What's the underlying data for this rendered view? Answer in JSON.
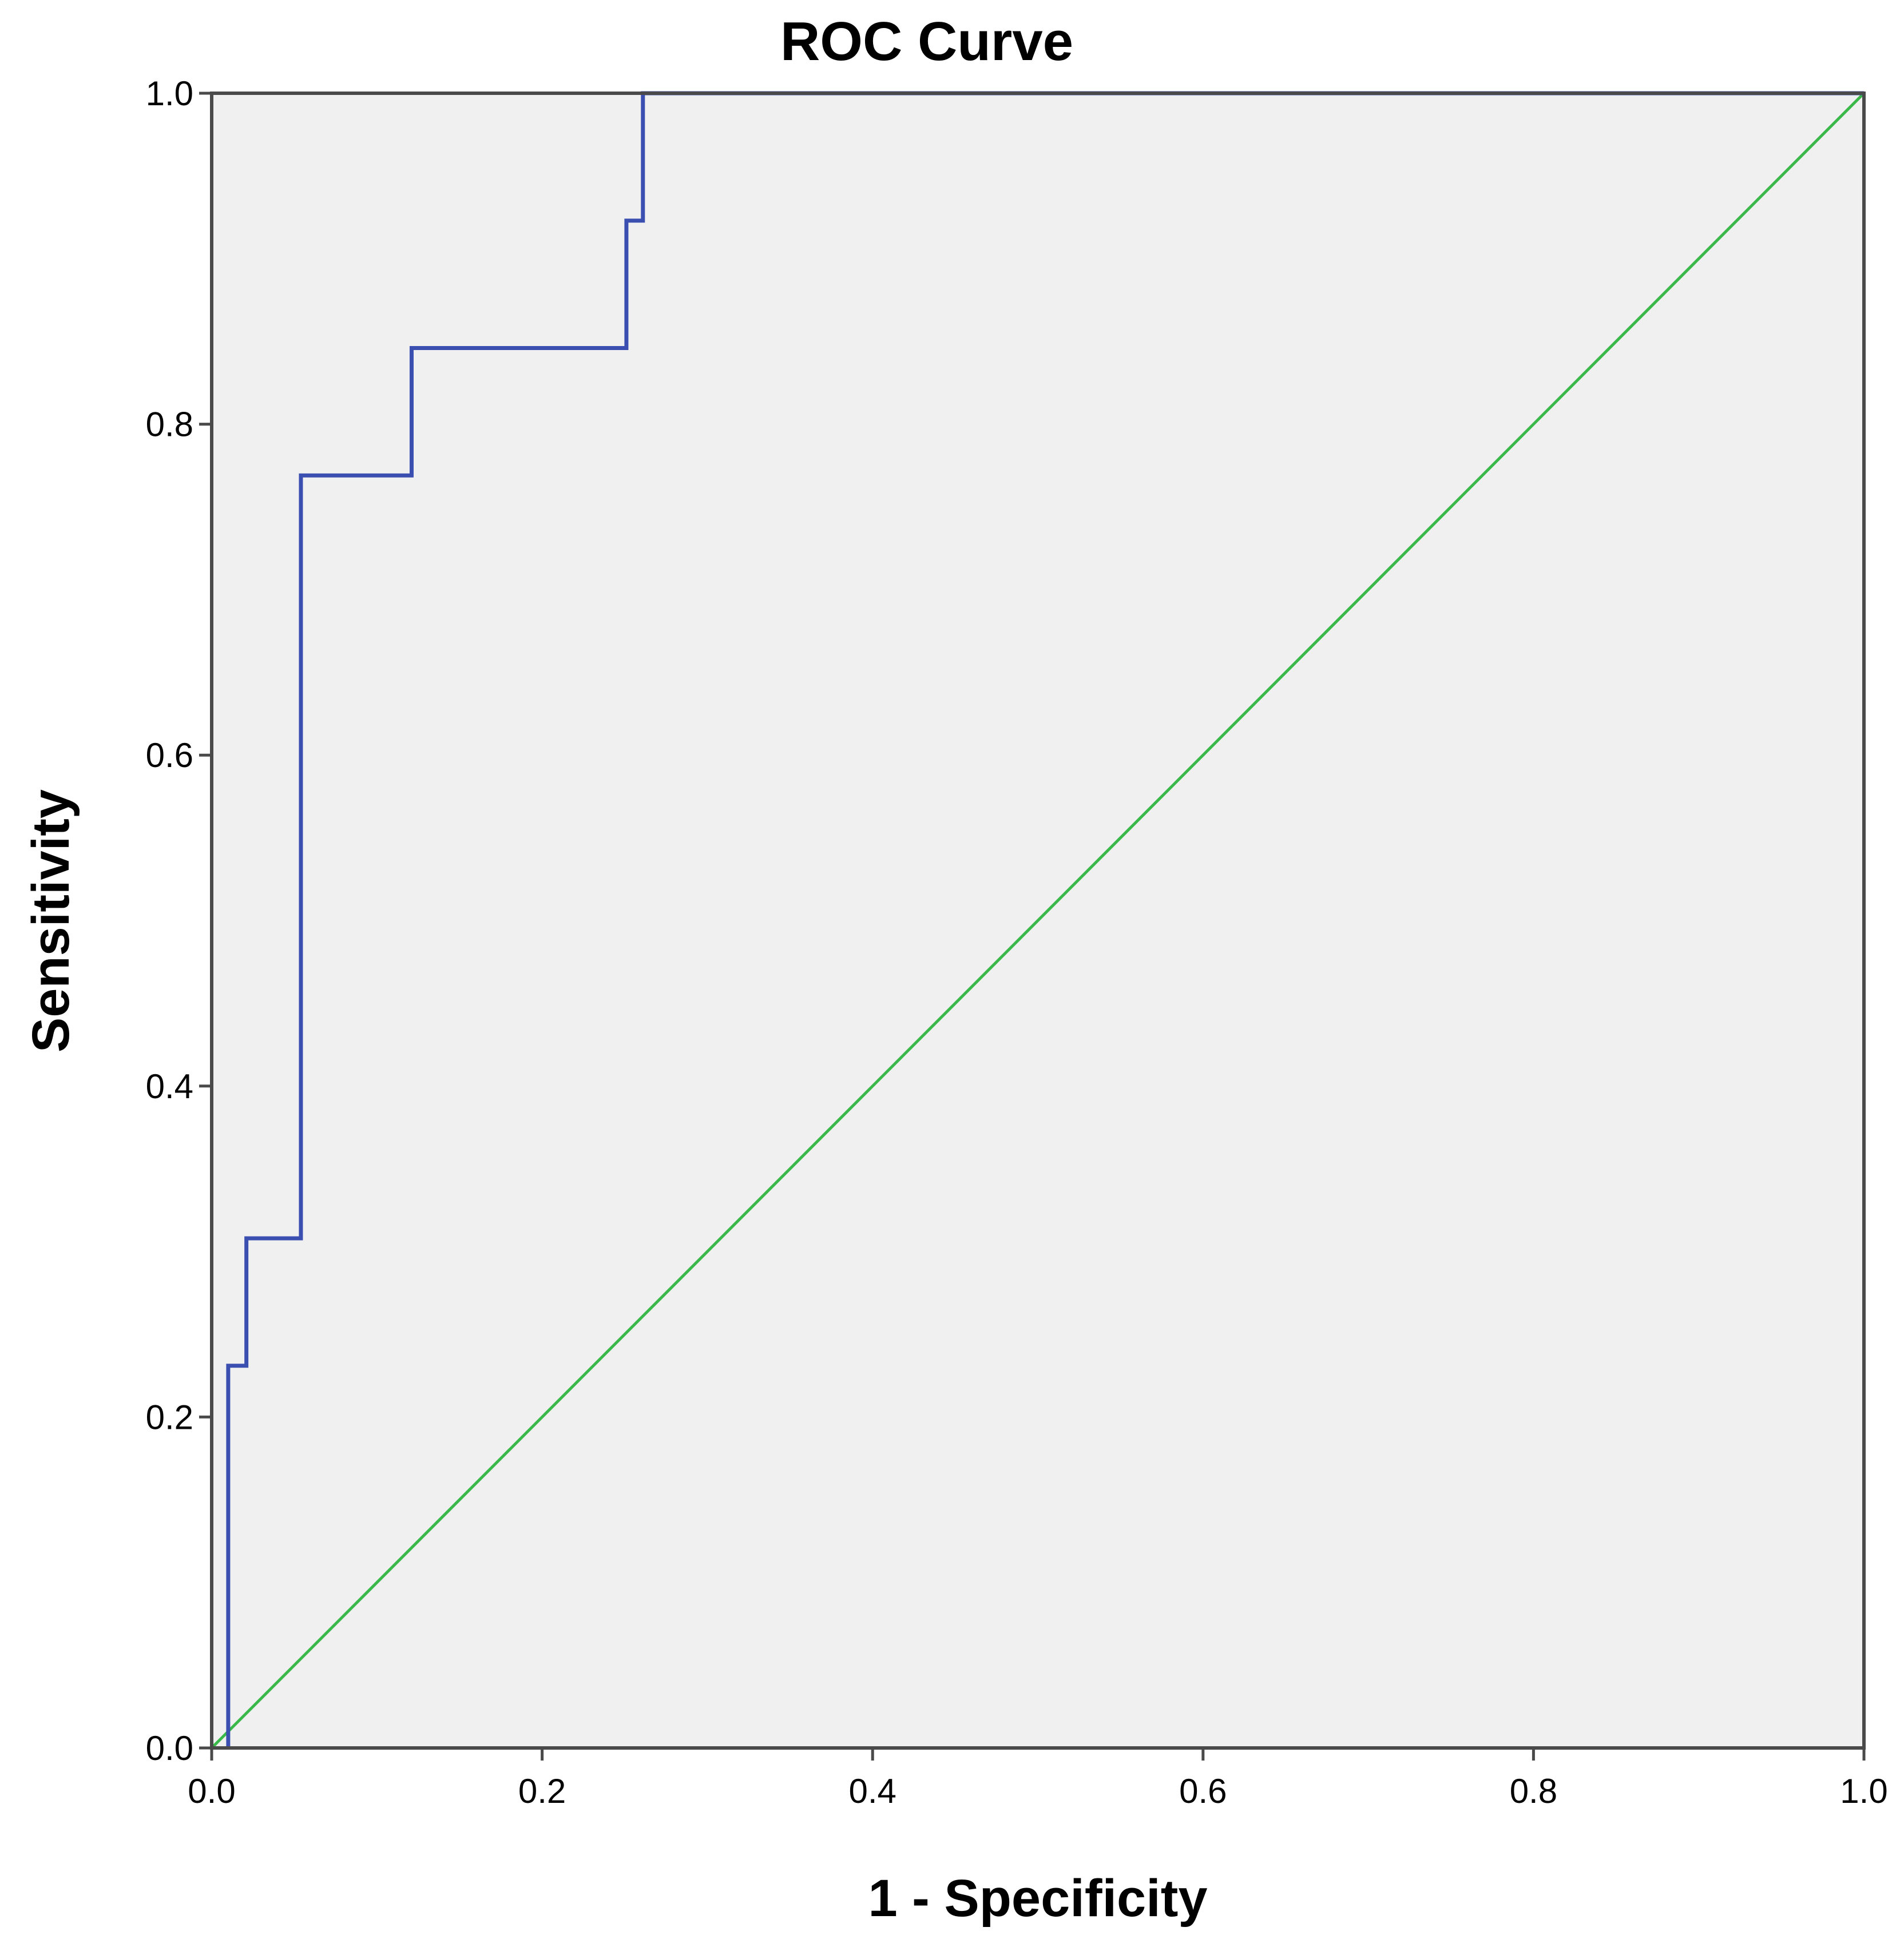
{
  "chart_data": {
    "type": "line",
    "title": "ROC Curve",
    "xlabel": "1 - Specificity",
    "ylabel": "Sensitivity",
    "xlim": [
      0,
      1
    ],
    "ylim": [
      0,
      1
    ],
    "x_ticks": [
      "0.0",
      "0.2",
      "0.4",
      "0.6",
      "0.8",
      "1.0"
    ],
    "y_ticks": [
      "0.0",
      "0.2",
      "0.4",
      "0.6",
      "0.8",
      "1.0"
    ],
    "grid": false,
    "legend": "none",
    "colors": {
      "plot_background": "#f0f0f0",
      "frame": "#4a4a4a",
      "roc_curve": "#3b4fb0",
      "reference_line": "#3ab84a"
    },
    "series": [
      {
        "x": [
          0.01,
          0.01,
          0.021,
          0.021,
          0.054,
          0.054,
          0.121,
          0.121,
          0.251,
          0.251,
          0.261,
          0.261,
          1.0
        ],
        "y": [
          0.0,
          0.231,
          0.231,
          0.308,
          0.308,
          0.769,
          0.769,
          0.846,
          0.846,
          0.923,
          0.923,
          1.0,
          1.0
        ]
      },
      {
        "x": [
          0,
          1
        ],
        "y": [
          0,
          1
        ]
      }
    ]
  }
}
